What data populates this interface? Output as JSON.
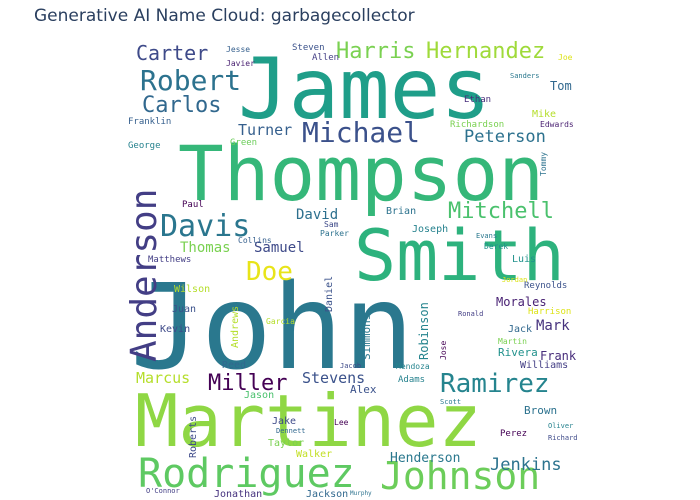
{
  "title": "Generative AI Name Cloud: garbagecollector",
  "chart_data": {
    "type": "wordcloud",
    "title": "Generative AI Name Cloud: garbagecollector",
    "words": [
      {
        "text": "John",
        "color": "#2a788e"
      },
      {
        "text": "Martinez",
        "color": "#8fd744"
      },
      {
        "text": "Thompson",
        "color": "#35b779"
      },
      {
        "text": "James",
        "color": "#1f9e89"
      },
      {
        "text": "Smith",
        "color": "#2db27d"
      },
      {
        "text": "Anderson",
        "color": "#433e85"
      },
      {
        "text": "Rodriguez",
        "color": "#5ec962"
      },
      {
        "text": "Johnson",
        "color": "#6ccd5a"
      },
      {
        "text": "Davis",
        "color": "#2a768e"
      },
      {
        "text": "Robert",
        "color": "#2c728e"
      },
      {
        "text": "Michael",
        "color": "#3b518b"
      },
      {
        "text": "Mitchell",
        "color": "#4ac16d"
      },
      {
        "text": "Ramirez",
        "color": "#25848e"
      },
      {
        "text": "Carlos",
        "color": "#31688e"
      },
      {
        "text": "Hernandez",
        "color": "#9fda3a"
      },
      {
        "text": "Harris",
        "color": "#7ad151"
      },
      {
        "text": "Carter",
        "color": "#3e4a89"
      },
      {
        "text": "Doe",
        "color": "#e8e419"
      },
      {
        "text": "Miller",
        "color": "#440154"
      },
      {
        "text": "Peterson",
        "color": "#2c718e"
      },
      {
        "text": "Turner",
        "color": "#355f8d"
      },
      {
        "text": "Jenkins",
        "color": "#2c738e"
      },
      {
        "text": "David",
        "color": "#2d708e"
      },
      {
        "text": "Stevens",
        "color": "#3b528b"
      },
      {
        "text": "Marcus",
        "color": "#b5de2b"
      },
      {
        "text": "Thomas",
        "color": "#7ad151"
      },
      {
        "text": "Samuel",
        "color": "#3e4a89"
      },
      {
        "text": "Mark",
        "color": "#46327e"
      },
      {
        "text": "Morales",
        "color": "#482173"
      },
      {
        "text": "Frank",
        "color": "#472d7b"
      },
      {
        "text": "Henderson",
        "color": "#2a788e"
      },
      {
        "text": "Tom",
        "color": "#31688e"
      },
      {
        "text": "Brian",
        "color": "#2c728e"
      },
      {
        "text": "Joseph",
        "color": "#26828e"
      },
      {
        "text": "Luis",
        "color": "#21918c"
      },
      {
        "text": "Daniel",
        "color": "#3b528b"
      },
      {
        "text": "Robinson",
        "color": "#25848e"
      },
      {
        "text": "Simmons",
        "color": "#2a788e"
      },
      {
        "text": "Andrews",
        "color": "#b5de2b"
      },
      {
        "text": "Kevin",
        "color": "#3e4a89"
      },
      {
        "text": "Juan",
        "color": "#3b528b"
      },
      {
        "text": "Reed",
        "color": "#31688e"
      },
      {
        "text": "Wilson",
        "color": "#b5de2b"
      },
      {
        "text": "Matthews",
        "color": "#433e85"
      },
      {
        "text": "Jason",
        "color": "#4ac16d"
      },
      {
        "text": "Alex",
        "color": "#3b528b"
      },
      {
        "text": "Adams",
        "color": "#26828e"
      },
      {
        "text": "Rivera",
        "color": "#21918c"
      },
      {
        "text": "Williams",
        "color": "#433e85"
      },
      {
        "text": "Jack",
        "color": "#31688e"
      },
      {
        "text": "Reynolds",
        "color": "#3b528b"
      },
      {
        "text": "Harrison",
        "color": "#dde318"
      },
      {
        "text": "Roberts",
        "color": "#3e4a89"
      },
      {
        "text": "Taylor",
        "color": "#7ad151"
      },
      {
        "text": "Jake",
        "color": "#3e4a89"
      },
      {
        "text": "Walker",
        "color": "#c2df23"
      },
      {
        "text": "Brown",
        "color": "#2c728e"
      },
      {
        "text": "Perez",
        "color": "#440154"
      },
      {
        "text": "Jonathan",
        "color": "#46327e"
      },
      {
        "text": "Jackson",
        "color": "#31688e"
      },
      {
        "text": "Ethan",
        "color": "#472d7b"
      },
      {
        "text": "Richardson",
        "color": "#7ad151"
      },
      {
        "text": "Mike",
        "color": "#b5de2b"
      },
      {
        "text": "Edwards",
        "color": "#481f70"
      },
      {
        "text": "Franklin",
        "color": "#355f8d"
      },
      {
        "text": "George",
        "color": "#26828e"
      },
      {
        "text": "Green",
        "color": "#6ccd5a"
      },
      {
        "text": "Steven",
        "color": "#3b528b"
      },
      {
        "text": "Allen",
        "color": "#433e85"
      },
      {
        "text": "Jesse",
        "color": "#355f8d"
      },
      {
        "text": "Javier",
        "color": "#481f70"
      },
      {
        "text": "Joe",
        "color": "#dde318"
      },
      {
        "text": "Sanders",
        "color": "#2a788e"
      },
      {
        "text": "Paul",
        "color": "#440154"
      },
      {
        "text": "Collins",
        "color": "#355f8d"
      },
      {
        "text": "Sam",
        "color": "#3e4a89"
      },
      {
        "text": "Parker",
        "color": "#2c728e"
      },
      {
        "text": "Derek",
        "color": "#21918c"
      },
      {
        "text": "Evans",
        "color": "#2a788e"
      },
      {
        "text": "Jordan",
        "color": "#dde318"
      },
      {
        "text": "Ronald",
        "color": "#433e85"
      },
      {
        "text": "Garcia",
        "color": "#b5de2b"
      },
      {
        "text": "Jose",
        "color": "#440154"
      },
      {
        "text": "Martin",
        "color": "#7ad151"
      },
      {
        "text": "Mendoza",
        "color": "#25848e"
      },
      {
        "text": "Jacob",
        "color": "#3e4a89"
      },
      {
        "text": "Scott",
        "color": "#2a788e"
      },
      {
        "text": "Tommy",
        "color": "#2c728e"
      },
      {
        "text": "Dennett",
        "color": "#31688e"
      },
      {
        "text": "Lee",
        "color": "#440154"
      },
      {
        "text": "Richard",
        "color": "#3e4a89"
      },
      {
        "text": "Oliver",
        "color": "#26828e"
      },
      {
        "text": "O'Connor",
        "color": "#433e85"
      },
      {
        "text": "Murphy",
        "color": "#2c728e"
      }
    ]
  }
}
